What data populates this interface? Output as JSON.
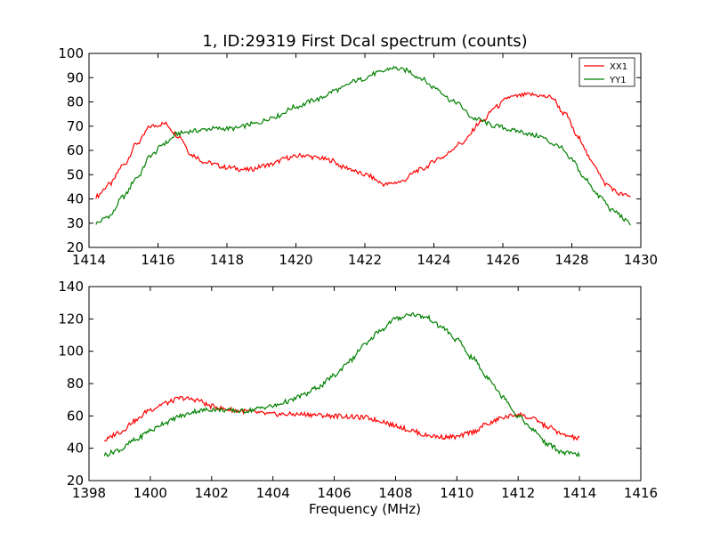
{
  "figure_title": "1, ID:29319 First Dcal spectrum (counts)",
  "chart_data": [
    {
      "type": "line",
      "title": "1, ID:29319 First Dcal spectrum (counts)",
      "xlabel": "",
      "ylabel": "",
      "xlim": [
        1414,
        1430
      ],
      "ylim": [
        20,
        100
      ],
      "xticks": [
        "1414",
        "1416",
        "1418",
        "1420",
        "1422",
        "1424",
        "1426",
        "1428",
        "1430"
      ],
      "yticks": [
        "20",
        "30",
        "40",
        "50",
        "60",
        "70",
        "80",
        "90",
        "100"
      ],
      "legend": {
        "placement": "top-right",
        "entries": [
          "XX1",
          "YY1"
        ]
      },
      "grid": false,
      "series": [
        {
          "name": "XX1",
          "color": "#ff0000",
          "x": [
            1414.2,
            1414.6,
            1415.0,
            1415.4,
            1415.8,
            1416.2,
            1416.6,
            1417.0,
            1417.4,
            1418.0,
            1418.6,
            1419.2,
            1419.8,
            1420.2,
            1420.6,
            1421.0,
            1421.4,
            1422.0,
            1422.6,
            1423.0,
            1423.6,
            1424.2,
            1424.8,
            1425.4,
            1425.8,
            1426.2,
            1426.8,
            1427.4,
            1427.8,
            1428.2,
            1428.6,
            1429.0,
            1429.4,
            1429.7
          ],
          "values": [
            41,
            46,
            54,
            63,
            70,
            71,
            66,
            58,
            55,
            53,
            52,
            54,
            57,
            58,
            57,
            56,
            53,
            50,
            46,
            47,
            52,
            57,
            63,
            72,
            78,
            82,
            83,
            82,
            75,
            65,
            55,
            46,
            42,
            41
          ]
        },
        {
          "name": "YY1",
          "color": "#008000",
          "x": [
            1414.2,
            1414.6,
            1415.0,
            1415.4,
            1415.8,
            1416.2,
            1416.6,
            1417.0,
            1417.6,
            1418.2,
            1418.8,
            1419.4,
            1420.0,
            1420.6,
            1421.2,
            1421.8,
            1422.4,
            1422.8,
            1423.2,
            1423.6,
            1424.0,
            1424.6,
            1425.2,
            1425.8,
            1426.4,
            1427.0,
            1427.6,
            1428.0,
            1428.4,
            1428.8,
            1429.2,
            1429.7
          ],
          "values": [
            30,
            33,
            41,
            49,
            58,
            63,
            67,
            68,
            69,
            69,
            71,
            74,
            78,
            81,
            85,
            89,
            92,
            94,
            93,
            90,
            86,
            80,
            73,
            70,
            68,
            66,
            62,
            56,
            48,
            41,
            35,
            30
          ]
        }
      ]
    },
    {
      "type": "line",
      "title": "",
      "xlabel": "Frequency (MHz)",
      "ylabel": "",
      "xlim": [
        1398,
        1416
      ],
      "ylim": [
        20,
        140
      ],
      "xticks": [
        "1398",
        "1400",
        "1402",
        "1404",
        "1406",
        "1408",
        "1410",
        "1412",
        "1414",
        "1416"
      ],
      "yticks": [
        "20",
        "40",
        "60",
        "80",
        "100",
        "120",
        "140"
      ],
      "legend": null,
      "grid": false,
      "series": [
        {
          "color": "#ff0000",
          "x": [
            1398.5,
            1399.0,
            1399.5,
            1400.0,
            1400.5,
            1401.0,
            1401.5,
            1402.0,
            1402.5,
            1403.0,
            1404.0,
            1405.0,
            1406.0,
            1407.0,
            1407.5,
            1408.0,
            1408.5,
            1409.0,
            1409.5,
            1410.0,
            1410.5,
            1411.0,
            1411.5,
            1412.0,
            1412.5,
            1413.0,
            1413.5,
            1414.0
          ],
          "values": [
            45,
            50,
            57,
            64,
            68,
            71,
            70,
            66,
            64,
            63,
            61,
            61,
            60,
            59,
            57,
            54,
            51,
            48,
            47,
            47,
            50,
            55,
            59,
            61,
            58,
            53,
            48,
            46
          ]
        },
        {
          "color": "#008000",
          "x": [
            1398.5,
            1399.0,
            1399.5,
            1400.0,
            1400.5,
            1401.0,
            1401.5,
            1402.0,
            1403.0,
            1404.0,
            1404.5,
            1405.0,
            1405.5,
            1406.0,
            1406.5,
            1407.0,
            1407.5,
            1408.0,
            1408.5,
            1409.0,
            1409.5,
            1410.0,
            1410.5,
            1411.0,
            1411.5,
            1412.0,
            1412.5,
            1413.0,
            1413.5,
            1414.0
          ],
          "values": [
            36,
            39,
            45,
            51,
            56,
            60,
            63,
            64,
            63,
            66,
            69,
            73,
            78,
            85,
            94,
            104,
            113,
            120,
            123,
            121,
            115,
            107,
            96,
            84,
            72,
            60,
            51,
            42,
            37,
            36
          ]
        }
      ]
    }
  ]
}
